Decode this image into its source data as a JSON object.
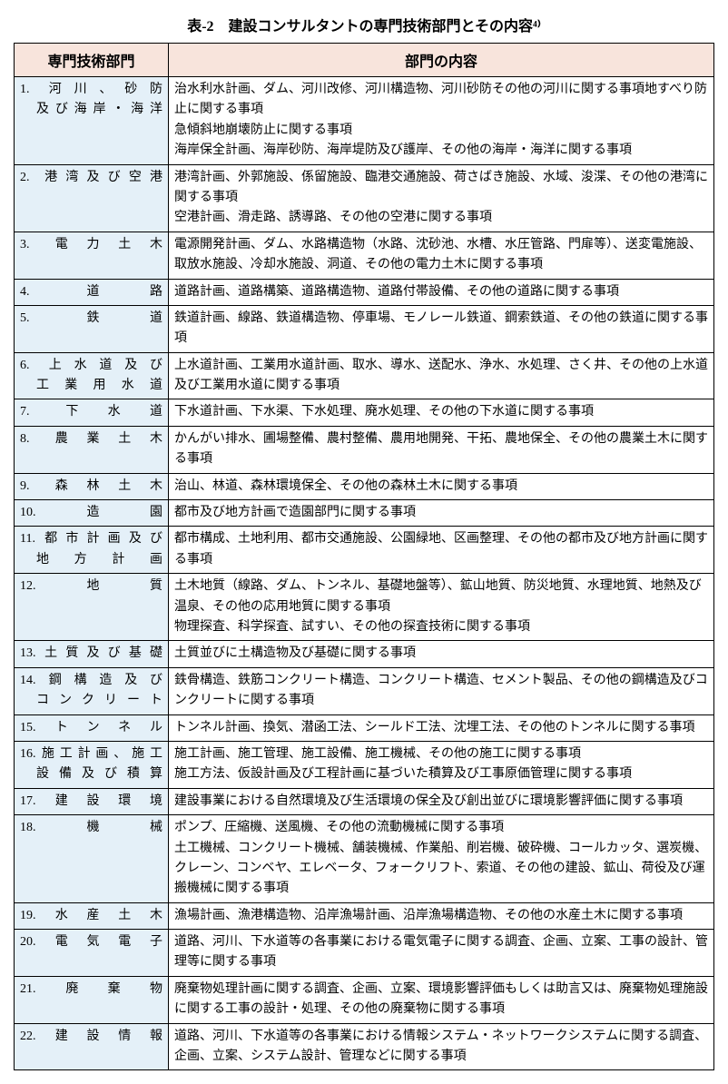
{
  "title": "表-2　建設コンサルタントの専門技術部門とその内容⁴⁾",
  "headers": {
    "department": "専門技術部門",
    "content": "部門の内容"
  },
  "rows": [
    {
      "num": "1.",
      "dept_lines": [
        "河川、砂防",
        "及び海岸・海洋"
      ],
      "indent_second": true,
      "content": "治水利水計画、ダム、河川改修、河川構造物、河川砂防その他の河川に関する事項地すべり防止に関する事項\n急傾斜地崩壊防止に関する事項\n海岸保全計画、海岸砂防、海岸堤防及び護岸、その他の海岸・海洋に関する事項"
    },
    {
      "num": "2.",
      "dept_lines": [
        "港湾及び空港"
      ],
      "content": "港湾計画、外郭施設、係留施設、臨港交通施設、荷さばき施設、水域、浚渫、その他の港湾に関する事項\n空港計画、滑走路、誘導路、その他の空港に関する事項"
    },
    {
      "num": "3.",
      "dept_lines": [
        "電力土木"
      ],
      "content": "電源開発計画、ダム、水路構造物（水路、沈砂池、水槽、水圧管路、門扉等）、送変電施設、取放水施設、冷却水施設、洞道、その他の電力土木に関する事項"
    },
    {
      "num": "4.",
      "dept_lines": [
        "道路"
      ],
      "content": "道路計画、道路構築、道路構造物、道路付帯設備、その他の道路に関する事項"
    },
    {
      "num": "5.",
      "dept_lines": [
        "鉄道"
      ],
      "content": "鉄道計画、線路、鉄道構造物、停車場、モノレール鉄道、鋼索鉄道、その他の鉄道に関する事項"
    },
    {
      "num": "6.",
      "dept_lines": [
        "上水道及び",
        "工業用水道"
      ],
      "indent_second": true,
      "content": "上水道計画、工業用水道計画、取水、導水、送配水、浄水、水処理、さく井、その他の上水道及び工業用水道に関する事項"
    },
    {
      "num": "7.",
      "dept_lines": [
        "下水道"
      ],
      "content": "下水道計画、下水渠、下水処理、廃水処理、その他の下水道に関する事項"
    },
    {
      "num": "8.",
      "dept_lines": [
        "農業土木"
      ],
      "content": "かんがい排水、圃場整備、農村整備、農用地開発、干拓、農地保全、その他の農業土木に関する事項"
    },
    {
      "num": "9.",
      "dept_lines": [
        "森林土木"
      ],
      "content": "治山、林道、森林環境保全、その他の森林土木に関する事項"
    },
    {
      "num": "10.",
      "dept_lines": [
        "造園"
      ],
      "content": "都市及び地方計画で造園部門に関する事項"
    },
    {
      "num": "11.",
      "dept_lines": [
        "都市計画及び",
        "地方計画"
      ],
      "indent_second": true,
      "content": "都市構成、土地利用、都市交通施設、公園緑地、区画整理、その他の都市及び地方計画に関する事項"
    },
    {
      "num": "12.",
      "dept_lines": [
        "地質"
      ],
      "content": "土木地質（線路、ダム、トンネル、基礎地盤等）、鉱山地質、防災地質、水理地質、地熱及び温泉、その他の応用地質に関する事項\n物理探査、科学探査、試すい、その他の探査技術に関する事項"
    },
    {
      "num": "13.",
      "dept_lines": [
        "土質及び基礎"
      ],
      "content": "土質並びに土構造物及び基礎に関する事項"
    },
    {
      "num": "14.",
      "dept_lines": [
        "鋼構造及び",
        "コンクリート"
      ],
      "indent_second": true,
      "content": "鉄骨構造、鉄筋コンクリート構造、コンクリート構造、セメント製品、その他の鋼構造及びコンクリートに関する事項"
    },
    {
      "num": "15.",
      "dept_lines": [
        "トンネル"
      ],
      "content": "トンネル計画、換気、潜函工法、シールド工法、沈埋工法、その他のトンネルに関する事項"
    },
    {
      "num": "16.",
      "dept_lines": [
        "施工計画、施工",
        "設備及び積算"
      ],
      "indent_second": true,
      "content": "施工計画、施工管理、施工設備、施工機械、その他の施工に関する事項\n施工方法、仮設計画及び工程計画に基づいた積算及び工事原価管理に関する事項"
    },
    {
      "num": "17.",
      "dept_lines": [
        "建設環境"
      ],
      "content": "建設事業における自然環境及び生活環境の保全及び創出並びに環境影響評価に関する事項"
    },
    {
      "num": "18.",
      "dept_lines": [
        "機械"
      ],
      "content": "ポンプ、圧縮機、送風機、その他の流動機械に関する事項\n土工機械、コンクリート機械、舗装機械、作業船、削岩機、破砕機、コールカッタ、選炭機、クレーン、コンベヤ、エレベータ、フォークリフト、索道、その他の建設、鉱山、荷役及び運搬機械に関する事項"
    },
    {
      "num": "19.",
      "dept_lines": [
        "水産土木"
      ],
      "content": "漁場計画、漁港構造物、沿岸漁場計画、沿岸漁場構造物、その他の水産土木に関する事項"
    },
    {
      "num": "20.",
      "dept_lines": [
        "電気電子"
      ],
      "content": "道路、河川、下水道等の各事業における電気電子に関する調査、企画、立案、工事の設計、管理等に関する事項"
    },
    {
      "num": "21.",
      "dept_lines": [
        "廃棄物"
      ],
      "content": "廃棄物処理計画に関する調査、企画、立案、環境影響評価もしくは助言又は、廃棄物処理施設に関する工事の設計・処理、その他の廃棄物に関する事項"
    },
    {
      "num": "22.",
      "dept_lines": [
        "建設情報"
      ],
      "content": "道路、河川、下水道等の各事業における情報システム・ネットワークシステムに関する調査、企画、立案、システム設計、管理などに関する事項"
    }
  ]
}
